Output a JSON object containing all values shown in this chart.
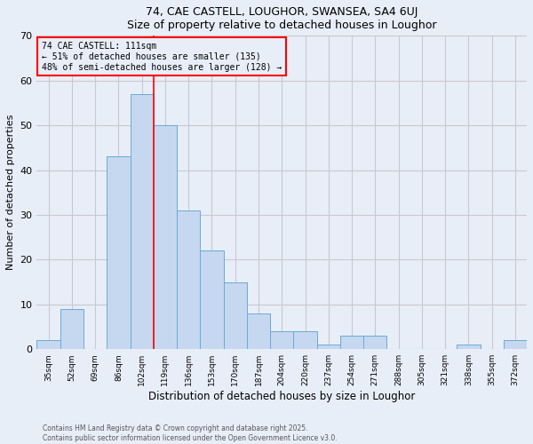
{
  "title1": "74, CAE CASTELL, LOUGHOR, SWANSEA, SA4 6UJ",
  "title2": "Size of property relative to detached houses in Loughor",
  "xlabel": "Distribution of detached houses by size in Loughor",
  "ylabel": "Number of detached properties",
  "categories": [
    "35sqm",
    "52sqm",
    "69sqm",
    "86sqm",
    "102sqm",
    "119sqm",
    "136sqm",
    "153sqm",
    "170sqm",
    "187sqm",
    "204sqm",
    "220sqm",
    "237sqm",
    "254sqm",
    "271sqm",
    "288sqm",
    "305sqm",
    "321sqm",
    "338sqm",
    "355sqm",
    "372sqm"
  ],
  "values": [
    2,
    9,
    0,
    43,
    57,
    50,
    31,
    22,
    15,
    8,
    4,
    4,
    1,
    3,
    3,
    0,
    0,
    0,
    1,
    0,
    2
  ],
  "bar_color": "#c5d8f0",
  "bar_edge_color": "#6aaad4",
  "annotation_box_text": "74 CAE CASTELL: 111sqm\n← 51% of detached houses are smaller (135)\n48% of semi-detached houses are larger (128) →",
  "annotation_box_color": "red",
  "red_line_x": 4.5,
  "ylim": [
    0,
    70
  ],
  "yticks": [
    0,
    10,
    20,
    30,
    40,
    50,
    60,
    70
  ],
  "grid_color": "#c8c8d0",
  "background_color": "#e8eef8",
  "footnote1": "Contains HM Land Registry data © Crown copyright and database right 2025.",
  "footnote2": "Contains public sector information licensed under the Open Government Licence v3.0."
}
